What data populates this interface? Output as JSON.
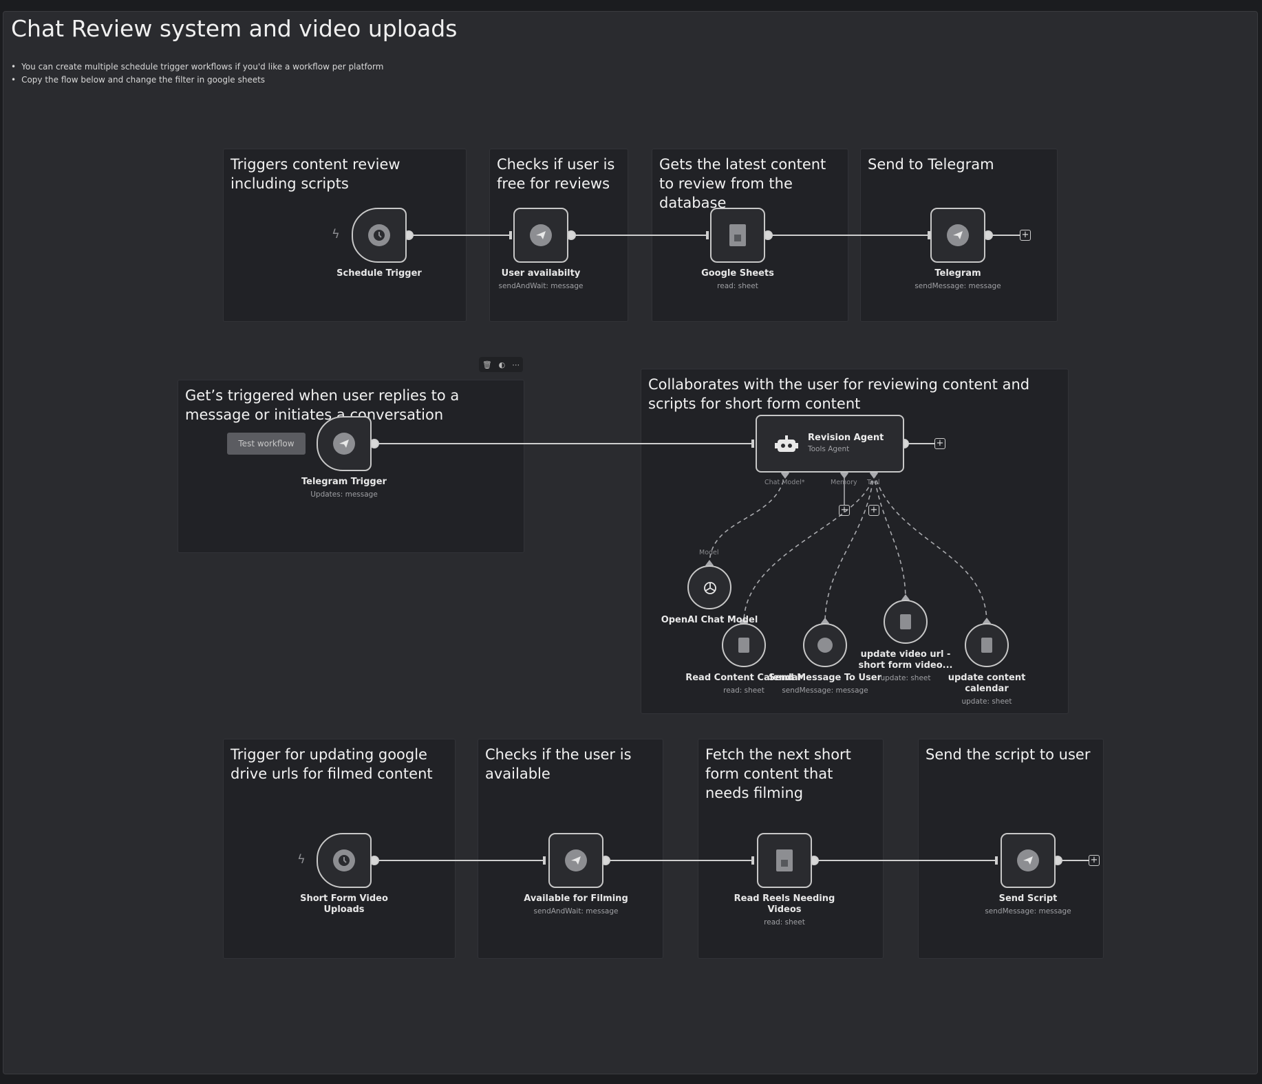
{
  "page": {
    "title": "Chat Review system and video uploads",
    "notes": [
      "You can create multiple schedule trigger workflows if you'd like a workflow per platform",
      "Copy the flow below and change the filter in google sheets"
    ]
  },
  "stickies": {
    "s1": "Triggers content review including scripts",
    "s2": "Checks if user is free for reviews",
    "s3": "Gets the latest content to review from the database",
    "s4": "Send to Telegram",
    "s5": "Get’s triggered when user replies to a message or initiates a conversation",
    "s6": "Collaborates with the user for reviewing content and scripts for short form content",
    "s7": "Trigger for updating google drive urls for filmed content",
    "s8": "Checks if the user is available",
    "s9": "Fetch the next short form content that needs filming",
    "s10": "Send the script to user"
  },
  "nodes": {
    "schedule_trigger": {
      "name": "Schedule Trigger",
      "icon": "clock-icon"
    },
    "user_availability": {
      "name": "User availabilty",
      "sub": "sendAndWait: message",
      "icon": "telegram-icon"
    },
    "google_sheets": {
      "name": "Google Sheets",
      "sub": "read: sheet",
      "icon": "sheets-icon"
    },
    "telegram": {
      "name": "Telegram",
      "sub": "sendMessage: message",
      "icon": "telegram-icon"
    },
    "telegram_trigger": {
      "name": "Telegram Trigger",
      "sub": "Updates: message",
      "icon": "telegram-icon"
    },
    "revision_agent": {
      "name": "Revision Agent",
      "sub": "Tools Agent",
      "icon": "robot-icon"
    },
    "openai_model": {
      "name": "OpenAI Chat Model",
      "icon": "openai-icon"
    },
    "read_content_calendar": {
      "name": "Read Content Calendar",
      "sub": "read: sheet"
    },
    "send_message_to_user": {
      "name": "Send Message To User",
      "sub": "sendMessage: message"
    },
    "update_video_url": {
      "name": "update video url - short form video...",
      "sub": "update: sheet"
    },
    "update_content_calendar": {
      "name": "update content calendar",
      "sub": "update: sheet"
    },
    "short_form_uploads": {
      "name": "Short Form Video Uploads",
      "icon": "clock-icon"
    },
    "available_filming": {
      "name": "Available for Filming",
      "sub": "sendAndWait: message"
    },
    "read_reels": {
      "name": "Read Reels Needing Videos",
      "sub": "read: sheet"
    },
    "send_script": {
      "name": "Send Script",
      "sub": "sendMessage: message"
    }
  },
  "agent_ports": {
    "chat_model": "Chat Model*",
    "memory": "Memory",
    "tool": "Tool",
    "model": "Model"
  },
  "controls": {
    "test_workflow": "Test workflow"
  },
  "colors": {
    "background": "#2a2b2f",
    "sticky": "#212226",
    "node_border": "#c8c8c8",
    "icon": "#8d8e92"
  }
}
